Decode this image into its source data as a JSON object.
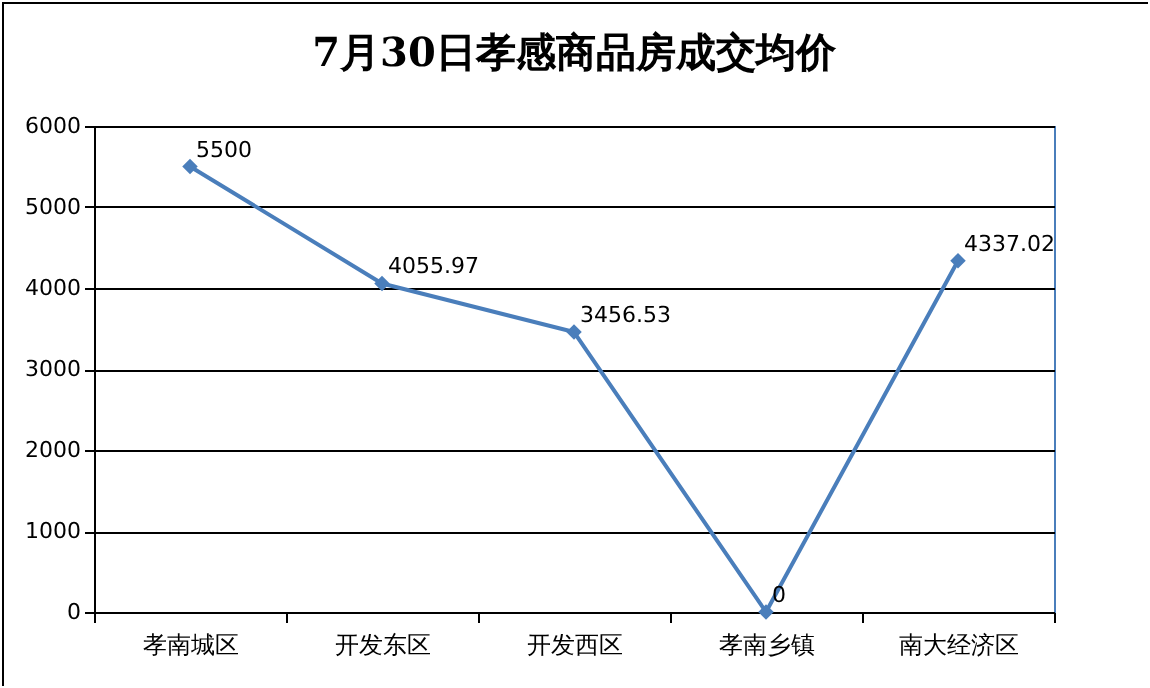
{
  "chart_data": {
    "type": "line",
    "title": "7月30日孝感商品房成交均价",
    "categories": [
      "孝南城区",
      "开发东区",
      "开发西区",
      "孝南乡镇",
      "南大经济区"
    ],
    "series": [
      {
        "color": "#4a7ebb",
        "values": [
          5500,
          4055.97,
          3456.53,
          0,
          4337.02
        ]
      }
    ],
    "ylim": [
      0,
      6000
    ],
    "yticks": [
      0,
      1000,
      2000,
      3000,
      4000,
      5000,
      6000
    ],
    "grid": "y",
    "marker": "diamond",
    "line_style": "solid",
    "data_labels": true,
    "legend": false
  }
}
